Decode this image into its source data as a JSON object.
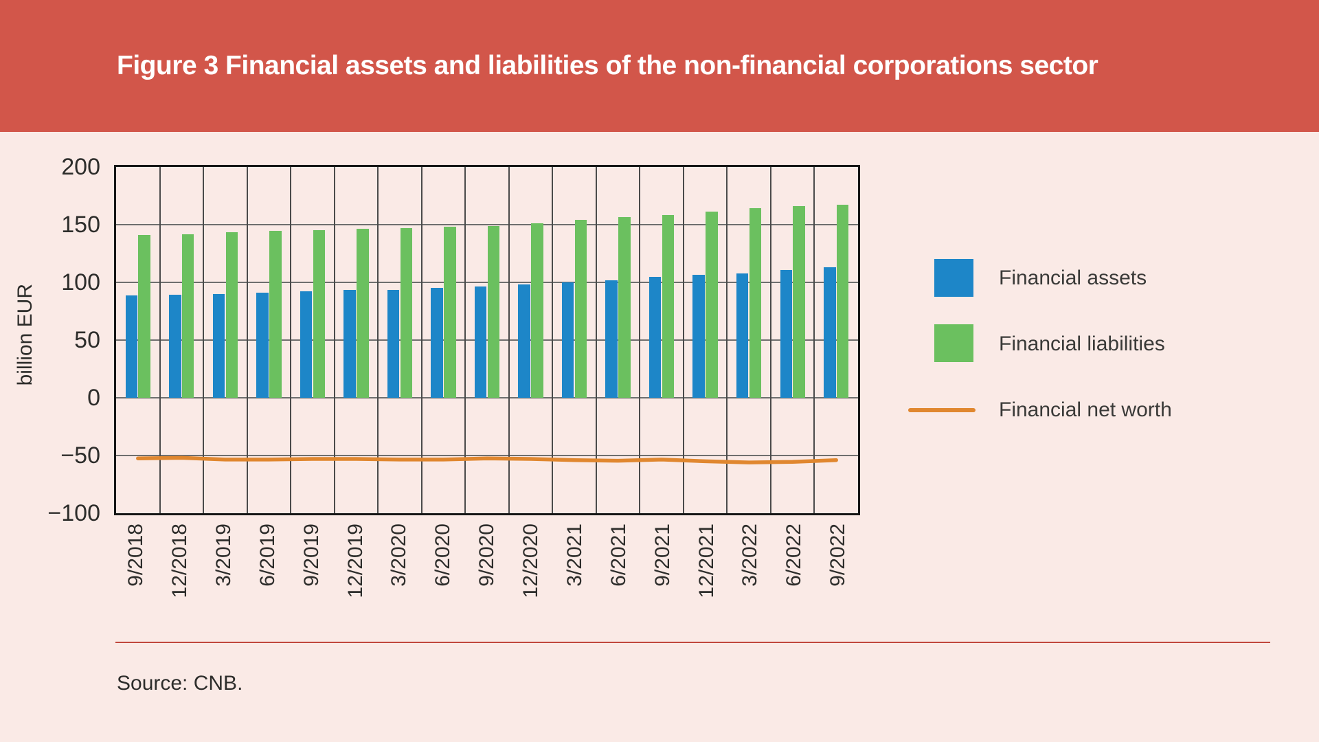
{
  "banner": {
    "title": "Figure 3 Financial assets and liabilities of the non-financial corporations sector",
    "bg_color": "#d2564a",
    "text_color": "#ffffff"
  },
  "chart_data": {
    "type": "bar",
    "title": "Figure 3 Financial assets and liabilities of the non-financial corporations sector",
    "xlabel": "",
    "ylabel": "billion EUR",
    "ylim": [
      -100,
      200
    ],
    "ytick_step": 50,
    "yticks": [
      "200",
      "150",
      "100",
      "50",
      "0",
      "−50",
      "−100"
    ],
    "grid": true,
    "legend_position": "right",
    "categories": [
      "9/2018",
      "12/2018",
      "3/2019",
      "6/2019",
      "9/2019",
      "12/2019",
      "3/2020",
      "6/2020",
      "9/2020",
      "12/2020",
      "3/2021",
      "6/2021",
      "9/2021",
      "12/2021",
      "3/2022",
      "6/2022",
      "9/2022"
    ],
    "series": [
      {
        "name": "Financial assets",
        "type": "bar",
        "color": "#1d86c8",
        "values": [
          88.5,
          89.5,
          90,
          91,
          92.5,
          93.5,
          93.5,
          95,
          96.5,
          98,
          100,
          102,
          105,
          106.5,
          108,
          110.5,
          113
        ]
      },
      {
        "name": "Financial liabilities",
        "type": "bar",
        "color": "#6bc05f",
        "values": [
          141,
          141.5,
          143.5,
          144.5,
          145.5,
          146.5,
          147,
          148.5,
          149,
          151,
          154,
          156.5,
          158.5,
          161.5,
          164,
          166,
          167
        ]
      },
      {
        "name": "Financial net worth",
        "type": "line",
        "color": "#e0872f",
        "values": [
          -52.5,
          -52,
          -53.5,
          -53.5,
          -53,
          -53,
          -53.5,
          -53.5,
          -52.5,
          -53,
          -54,
          -54.5,
          -53.5,
          -55,
          -56,
          -55.5,
          -54
        ]
      }
    ]
  },
  "source": {
    "text": "Source: CNB."
  },
  "colors": {
    "background": "#faeae6",
    "banner_red": "#d2564a",
    "assets_blue": "#1d86c8",
    "liabilities_green": "#6bc05f",
    "net_worth_orange": "#e0872f",
    "grid_gray": "#6e6e6e",
    "axis_black": "#161616",
    "rule_red": "#c0473d",
    "text_dark": "#2d2d2b"
  }
}
